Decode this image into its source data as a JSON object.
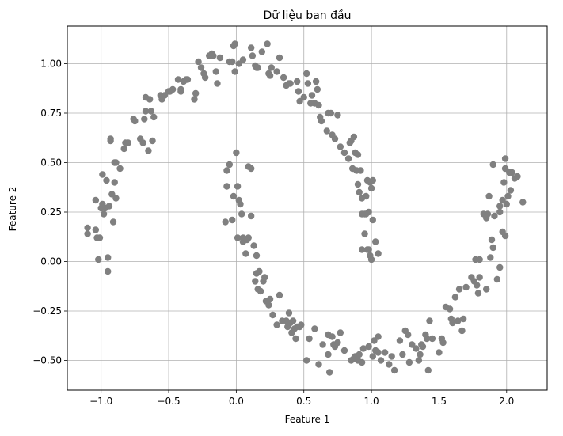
{
  "chart_data": {
    "type": "scatter",
    "title": "Dữ liệu ban đầu",
    "xlabel": "Feature 1",
    "ylabel": "Feature 2",
    "xlim": [
      -1.25,
      2.3
    ],
    "ylim": [
      -0.65,
      1.19
    ],
    "xticks": [
      -1.0,
      -0.5,
      0.0,
      0.5,
      1.0,
      1.5,
      2.0
    ],
    "xtick_labels": [
      "−1.0",
      "−0.5",
      "0.0",
      "0.5",
      "1.0",
      "1.5",
      "2.0"
    ],
    "yticks": [
      -0.5,
      -0.25,
      0.0,
      0.25,
      0.5,
      0.75,
      1.0
    ],
    "ytick_labels": [
      "−0.50",
      "−0.25",
      "0.00",
      "0.25",
      "0.50",
      "0.75",
      "1.00"
    ],
    "grid": true,
    "legend": "none",
    "marker_color": "#808080",
    "series": [
      {
        "points": [
          [
            -1.1,
            0.14
          ],
          [
            -1.1,
            0.17
          ],
          [
            -1.04,
            0.31
          ],
          [
            -1.04,
            0.16
          ],
          [
            -1.03,
            0.12
          ],
          [
            -1.02,
            0.01
          ],
          [
            -1.01,
            0.12
          ],
          [
            -1.0,
            0.27
          ],
          [
            -0.99,
            0.44
          ],
          [
            -0.99,
            0.29
          ],
          [
            -0.98,
            0.24
          ],
          [
            -0.97,
            0.27
          ],
          [
            -0.96,
            0.41
          ],
          [
            -0.94,
            0.28
          ],
          [
            -0.95,
            0.02
          ],
          [
            -0.95,
            -0.05
          ],
          [
            -0.93,
            0.62
          ],
          [
            -0.93,
            0.61
          ],
          [
            -0.92,
            0.34
          ],
          [
            -0.91,
            0.2
          ],
          [
            -0.9,
            0.4
          ],
          [
            -0.9,
            0.5
          ],
          [
            -0.89,
            0.5
          ],
          [
            -0.89,
            0.32
          ],
          [
            -0.86,
            0.47
          ],
          [
            -0.83,
            0.57
          ],
          [
            -0.82,
            0.6
          ],
          [
            -0.8,
            0.6
          ],
          [
            -0.76,
            0.72
          ],
          [
            -0.75,
            0.71
          ],
          [
            -0.71,
            0.62
          ],
          [
            -0.69,
            0.6
          ],
          [
            -0.68,
            0.72
          ],
          [
            -0.67,
            0.76
          ],
          [
            -0.67,
            0.83
          ],
          [
            -0.65,
            0.56
          ],
          [
            -0.64,
            0.82
          ],
          [
            -0.63,
            0.76
          ],
          [
            -0.62,
            0.61
          ],
          [
            -0.61,
            0.73
          ],
          [
            -0.56,
            0.84
          ],
          [
            -0.55,
            0.82
          ],
          [
            -0.53,
            0.84
          ],
          [
            -0.5,
            0.86
          ],
          [
            -0.49,
            0.86
          ],
          [
            -0.47,
            0.87
          ],
          [
            -0.43,
            0.92
          ],
          [
            -0.41,
            0.86
          ],
          [
            -0.41,
            0.87
          ],
          [
            -0.39,
            0.91
          ],
          [
            -0.37,
            0.92
          ],
          [
            -0.36,
            0.92
          ],
          [
            -0.31,
            0.82
          ],
          [
            -0.3,
            0.85
          ],
          [
            -0.28,
            1.01
          ],
          [
            -0.26,
            0.98
          ],
          [
            -0.24,
            0.95
          ],
          [
            -0.23,
            0.93
          ],
          [
            -0.2,
            1.04
          ],
          [
            -0.18,
            1.05
          ],
          [
            -0.17,
            1.04
          ],
          [
            -0.15,
            0.96
          ],
          [
            -0.14,
            0.9
          ],
          [
            -0.12,
            1.03
          ],
          [
            -0.05,
            1.01
          ],
          [
            -0.03,
            1.01
          ],
          [
            -0.02,
            1.09
          ],
          [
            -0.01,
            1.1
          ],
          [
            -0.01,
            0.96
          ],
          [
            0.02,
            1.0
          ],
          [
            0.05,
            1.02
          ],
          [
            0.11,
            1.08
          ],
          [
            0.12,
            1.04
          ],
          [
            0.14,
            0.99
          ],
          [
            0.15,
            0.98
          ],
          [
            0.16,
            0.98
          ],
          [
            0.19,
            1.06
          ],
          [
            0.23,
            1.1
          ],
          [
            0.24,
            0.95
          ],
          [
            0.25,
            0.94
          ],
          [
            0.26,
            0.98
          ],
          [
            0.3,
            0.96
          ],
          [
            0.32,
            1.03
          ],
          [
            0.35,
            0.93
          ],
          [
            0.37,
            0.89
          ],
          [
            0.39,
            0.9
          ],
          [
            0.4,
            0.9
          ],
          [
            0.45,
            0.91
          ],
          [
            0.46,
            0.86
          ],
          [
            0.47,
            0.81
          ],
          [
            0.5,
            0.83
          ],
          [
            0.52,
            0.95
          ],
          [
            0.53,
            0.9
          ],
          [
            0.55,
            0.8
          ],
          [
            0.56,
            0.84
          ],
          [
            0.58,
            0.8
          ],
          [
            0.59,
            0.91
          ],
          [
            0.6,
            0.87
          ],
          [
            0.61,
            0.79
          ],
          [
            0.62,
            0.73
          ],
          [
            0.63,
            0.71
          ],
          [
            0.67,
            0.66
          ],
          [
            0.68,
            0.75
          ],
          [
            0.7,
            0.75
          ],
          [
            0.71,
            0.64
          ],
          [
            0.73,
            0.62
          ],
          [
            0.75,
            0.74
          ],
          [
            0.77,
            0.58
          ],
          [
            0.8,
            0.55
          ],
          [
            0.83,
            0.52
          ],
          [
            0.84,
            0.6
          ],
          [
            0.85,
            0.61
          ],
          [
            0.86,
            0.47
          ],
          [
            0.87,
            0.63
          ],
          [
            0.88,
            0.55
          ],
          [
            0.89,
            0.46
          ],
          [
            0.9,
            0.54
          ],
          [
            0.9,
            0.39
          ],
          [
            0.91,
            0.35
          ],
          [
            0.92,
            0.46
          ],
          [
            0.93,
            0.32
          ],
          [
            0.93,
            0.24
          ],
          [
            0.95,
            0.24
          ],
          [
            0.96,
            0.33
          ],
          [
            0.96,
            0.24
          ],
          [
            0.97,
            0.41
          ],
          [
            0.98,
            0.25
          ],
          [
            0.99,
            0.4
          ],
          [
            1.0,
            0.37
          ],
          [
            1.01,
            0.41
          ],
          [
            1.01,
            0.21
          ],
          [
            0.93,
            0.06
          ],
          [
            0.95,
            0.14
          ],
          [
            0.97,
            0.06
          ],
          [
            0.98,
            0.06
          ],
          [
            0.99,
            0.03
          ],
          [
            1.0,
            0.01
          ],
          [
            1.03,
            0.1
          ],
          [
            1.05,
            0.04
          ]
        ]
      },
      {
        "points": [
          [
            -0.08,
            0.2
          ],
          [
            -0.07,
            0.38
          ],
          [
            -0.07,
            0.46
          ],
          [
            -0.05,
            0.49
          ],
          [
            -0.03,
            0.21
          ],
          [
            -0.02,
            0.33
          ],
          [
            0.0,
            0.55
          ],
          [
            0.01,
            0.38
          ],
          [
            0.01,
            0.12
          ],
          [
            0.02,
            0.31
          ],
          [
            0.03,
            0.29
          ],
          [
            0.04,
            0.24
          ],
          [
            0.05,
            0.12
          ],
          [
            0.05,
            0.1
          ],
          [
            0.06,
            0.11
          ],
          [
            0.07,
            0.04
          ],
          [
            0.08,
            0.11
          ],
          [
            0.09,
            0.12
          ],
          [
            0.09,
            0.48
          ],
          [
            0.11,
            0.47
          ],
          [
            0.11,
            0.23
          ],
          [
            0.13,
            0.08
          ],
          [
            0.14,
            -0.1
          ],
          [
            0.15,
            -0.06
          ],
          [
            0.15,
            0.03
          ],
          [
            0.16,
            -0.14
          ],
          [
            0.17,
            -0.05
          ],
          [
            0.18,
            -0.15
          ],
          [
            0.2,
            -0.1
          ],
          [
            0.21,
            -0.08
          ],
          [
            0.22,
            -0.2
          ],
          [
            0.24,
            -0.22
          ],
          [
            0.25,
            -0.19
          ],
          [
            0.27,
            -0.27
          ],
          [
            0.3,
            -0.32
          ],
          [
            0.32,
            -0.17
          ],
          [
            0.34,
            -0.3
          ],
          [
            0.37,
            -0.3
          ],
          [
            0.38,
            -0.33
          ],
          [
            0.39,
            -0.26
          ],
          [
            0.4,
            -0.31
          ],
          [
            0.41,
            -0.36
          ],
          [
            0.42,
            -0.3
          ],
          [
            0.43,
            -0.34
          ],
          [
            0.44,
            -0.39
          ],
          [
            0.45,
            -0.33
          ],
          [
            0.47,
            -0.33
          ],
          [
            0.48,
            -0.32
          ],
          [
            0.52,
            -0.5
          ],
          [
            0.54,
            -0.39
          ],
          [
            0.58,
            -0.34
          ],
          [
            0.61,
            -0.52
          ],
          [
            0.64,
            -0.42
          ],
          [
            0.68,
            -0.37
          ],
          [
            0.68,
            -0.47
          ],
          [
            0.69,
            -0.56
          ],
          [
            0.71,
            -0.38
          ],
          [
            0.72,
            -0.42
          ],
          [
            0.73,
            -0.43
          ],
          [
            0.75,
            -0.41
          ],
          [
            0.77,
            -0.36
          ],
          [
            0.8,
            -0.45
          ],
          [
            0.85,
            -0.5
          ],
          [
            0.87,
            -0.49
          ],
          [
            0.88,
            -0.48
          ],
          [
            0.9,
            -0.5
          ],
          [
            0.91,
            -0.47
          ],
          [
            0.93,
            -0.51
          ],
          [
            0.94,
            -0.44
          ],
          [
            0.98,
            -0.43
          ],
          [
            1.01,
            -0.48
          ],
          [
            1.02,
            -0.4
          ],
          [
            1.03,
            -0.45
          ],
          [
            1.05,
            -0.38
          ],
          [
            1.05,
            -0.46
          ],
          [
            1.07,
            -0.5
          ],
          [
            1.1,
            -0.46
          ],
          [
            1.13,
            -0.52
          ],
          [
            1.15,
            -0.48
          ],
          [
            1.17,
            -0.55
          ],
          [
            1.21,
            -0.4
          ],
          [
            1.23,
            -0.47
          ],
          [
            1.25,
            -0.35
          ],
          [
            1.27,
            -0.37
          ],
          [
            1.28,
            -0.51
          ],
          [
            1.3,
            -0.42
          ],
          [
            1.33,
            -0.44
          ],
          [
            1.35,
            -0.5
          ],
          [
            1.36,
            -0.47
          ],
          [
            1.37,
            -0.42
          ],
          [
            1.38,
            -0.43
          ],
          [
            1.4,
            -0.37
          ],
          [
            1.41,
            -0.39
          ],
          [
            1.42,
            -0.55
          ],
          [
            1.43,
            -0.3
          ],
          [
            1.45,
            -0.39
          ],
          [
            1.5,
            -0.46
          ],
          [
            1.52,
            -0.39
          ],
          [
            1.53,
            -0.41
          ],
          [
            1.55,
            -0.23
          ],
          [
            1.58,
            -0.24
          ],
          [
            1.59,
            -0.29
          ],
          [
            1.6,
            -0.31
          ],
          [
            1.62,
            -0.18
          ],
          [
            1.64,
            -0.3
          ],
          [
            1.65,
            -0.14
          ],
          [
            1.67,
            -0.35
          ],
          [
            1.68,
            -0.29
          ],
          [
            1.7,
            -0.13
          ],
          [
            1.74,
            -0.08
          ],
          [
            1.76,
            -0.1
          ],
          [
            1.78,
            -0.12
          ],
          [
            1.79,
            -0.16
          ],
          [
            1.8,
            -0.08
          ],
          [
            1.77,
            0.01
          ],
          [
            1.8,
            0.01
          ],
          [
            1.85,
            -0.14
          ],
          [
            1.88,
            0.02
          ],
          [
            1.89,
            0.11
          ],
          [
            1.9,
            0.07
          ],
          [
            1.91,
            0.23
          ],
          [
            1.93,
            -0.09
          ],
          [
            1.95,
            -0.03
          ],
          [
            1.95,
            0.25
          ],
          [
            1.97,
            0.15
          ],
          [
            1.99,
            0.13
          ],
          [
            1.83,
            0.24
          ],
          [
            1.85,
            0.22
          ],
          [
            1.86,
            0.24
          ],
          [
            1.87,
            0.33
          ],
          [
            1.9,
            0.49
          ],
          [
            1.95,
            0.28
          ],
          [
            1.97,
            0.31
          ],
          [
            1.98,
            0.4
          ],
          [
            1.99,
            0.52
          ],
          [
            1.99,
            0.47
          ],
          [
            2.0,
            0.29
          ],
          [
            2.01,
            0.33
          ],
          [
            2.02,
            0.45
          ],
          [
            2.03,
            0.36
          ],
          [
            2.04,
            0.45
          ],
          [
            2.06,
            0.42
          ],
          [
            2.08,
            0.43
          ],
          [
            2.12,
            0.3
          ]
        ]
      }
    ]
  }
}
